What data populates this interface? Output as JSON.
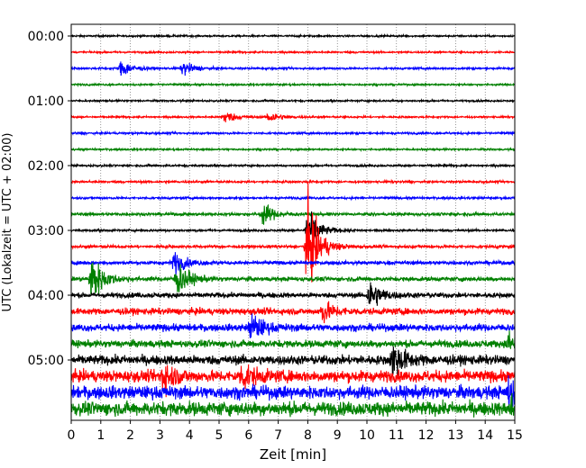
{
  "chart_data": {
    "type": "line",
    "title": "",
    "xlabel": "Zeit  [min]",
    "ylabel": "UTC (Lokalzeit = UTC + 02:00)",
    "xlim": [
      0,
      15
    ],
    "x_ticks": [
      "0",
      "1",
      "2",
      "3",
      "4",
      "5",
      "6",
      "7",
      "8",
      "9",
      "10",
      "11",
      "12",
      "13",
      "14",
      "15"
    ],
    "y_ticks": [
      "00:00",
      "01:00",
      "02:00",
      "03:00",
      "04:00",
      "05:00"
    ],
    "grid": "vertical dotted at each minute",
    "trace_interval_minutes": 15,
    "trace_count": 24,
    "colors": [
      "#000000",
      "#ff0000",
      "#0000ff",
      "#008000"
    ],
    "trace_amplitudes": [
      0.25,
      0.25,
      0.28,
      0.25,
      0.25,
      0.25,
      0.28,
      0.25,
      0.28,
      0.3,
      0.3,
      0.4,
      0.3,
      0.4,
      0.5,
      0.6,
      0.7,
      0.9,
      1.0,
      1.0,
      1.3,
      1.6,
      1.8,
      1.9
    ],
    "events": [
      {
        "trace": 2,
        "x": 1.7,
        "amp": 2.5
      },
      {
        "trace": 2,
        "x": 3.8,
        "amp": 2.0
      },
      {
        "trace": 5,
        "x": 5.2,
        "amp": 1.8
      },
      {
        "trace": 5,
        "x": 6.7,
        "amp": 1.8
      },
      {
        "trace": 11,
        "x": 6.5,
        "amp": 3.0
      },
      {
        "trace": 12,
        "x": 8.0,
        "amp": 6.0
      },
      {
        "trace": 13,
        "x": 8.0,
        "amp": 13.0
      },
      {
        "trace": 14,
        "x": 3.5,
        "amp": 3.0
      },
      {
        "trace": 15,
        "x": 0.7,
        "amp": 7.0
      },
      {
        "trace": 15,
        "x": 3.6,
        "amp": 5.0
      },
      {
        "trace": 16,
        "x": 10.1,
        "amp": 4.5
      },
      {
        "trace": 17,
        "x": 8.5,
        "amp": 3.0
      },
      {
        "trace": 18,
        "x": 6.1,
        "amp": 4.0
      },
      {
        "trace": 19,
        "x": 14.8,
        "amp": 3.0
      },
      {
        "trace": 20,
        "x": 10.9,
        "amp": 5.0
      },
      {
        "trace": 21,
        "x": 3.1,
        "amp": 4.0
      },
      {
        "trace": 21,
        "x": 5.8,
        "amp": 3.5
      },
      {
        "trace": 22,
        "x": 14.8,
        "amp": 4.0
      },
      {
        "trace": 23,
        "x": 14.9,
        "amp": 3.0
      }
    ]
  }
}
